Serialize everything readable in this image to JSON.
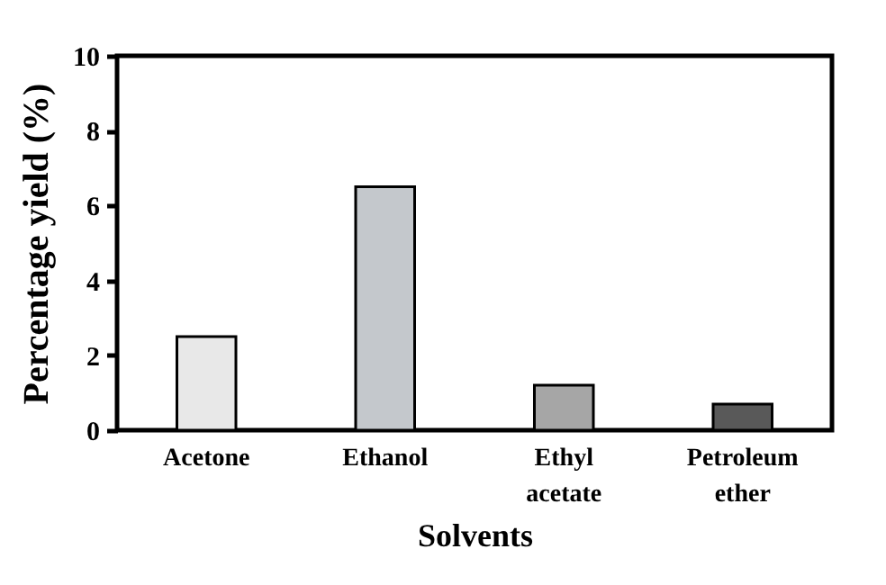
{
  "chart_data": {
    "type": "bar",
    "xlabel": "Solvents",
    "ylabel": "Percentage yield (%)",
    "categories": [
      "Acetone",
      "Ethanol",
      "Ethyl acetate",
      "Petroleum ether"
    ],
    "values": [
      2.5,
      6.5,
      1.2,
      0.7
    ],
    "colors": [
      "#e8e8e8",
      "#c4c8cc",
      "#a6a6a6",
      "#595959"
    ],
    "ylim": [
      0,
      10
    ],
    "yticks": [
      0,
      2,
      4,
      6,
      8,
      10
    ],
    "grid": false
  }
}
